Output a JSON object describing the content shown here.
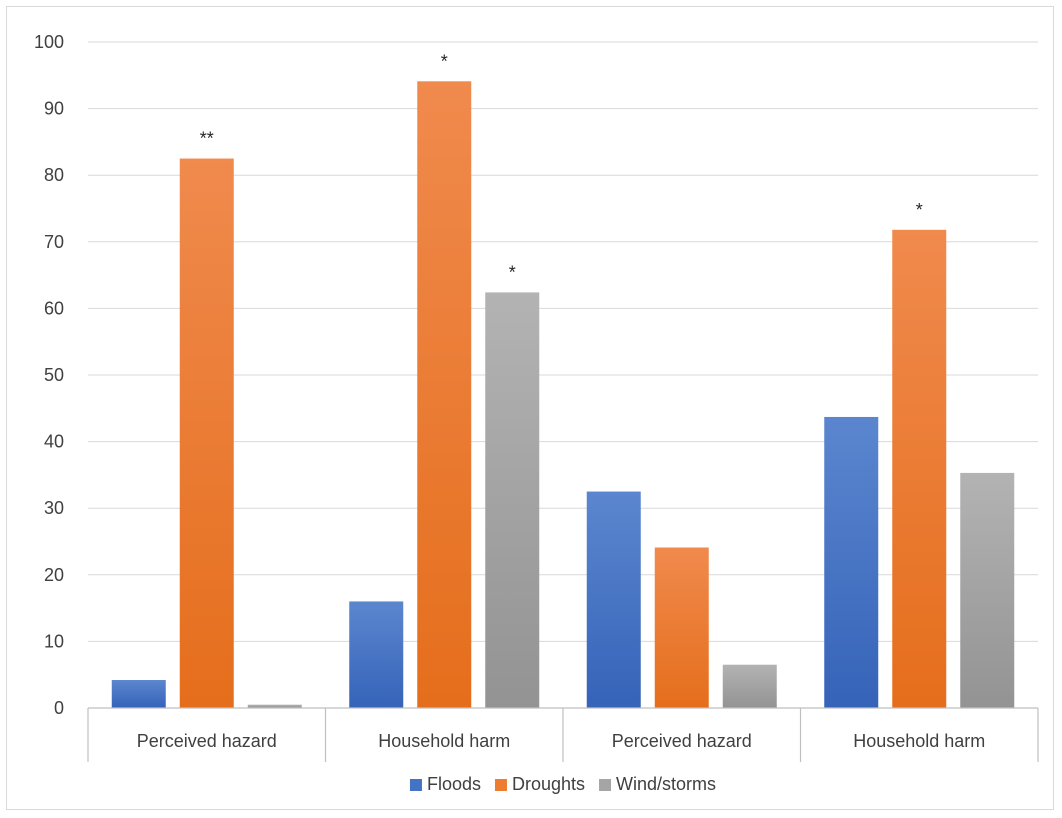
{
  "chart_data": {
    "type": "bar",
    "categories": [
      "Perceived hazard",
      "Household harm",
      "Perceived hazard",
      "Household harm"
    ],
    "series": [
      {
        "name": "Floods",
        "values": [
          4.2,
          16.0,
          32.5,
          43.7
        ],
        "color": "#4472c4"
      },
      {
        "name": "Droughts",
        "values": [
          82.5,
          94.1,
          24.1,
          71.8
        ],
        "color": "#ed7d31"
      },
      {
        "name": "Wind/storms",
        "values": [
          0.5,
          62.4,
          6.5,
          35.3
        ],
        "color": "#a5a5a5"
      }
    ],
    "annotations": [
      {
        "category_index": 0,
        "series_index": 1,
        "text": "**"
      },
      {
        "category_index": 1,
        "series_index": 1,
        "text": "*"
      },
      {
        "category_index": 1,
        "series_index": 2,
        "text": "*"
      },
      {
        "category_index": 3,
        "series_index": 1,
        "text": "*"
      }
    ],
    "yticks": [
      0,
      10,
      20,
      30,
      40,
      50,
      60,
      70,
      80,
      90,
      100
    ],
    "ylim": [
      0,
      100
    ],
    "grid": true,
    "legend_position": "bottom",
    "title": "",
    "xlabel": "",
    "ylabel": ""
  }
}
